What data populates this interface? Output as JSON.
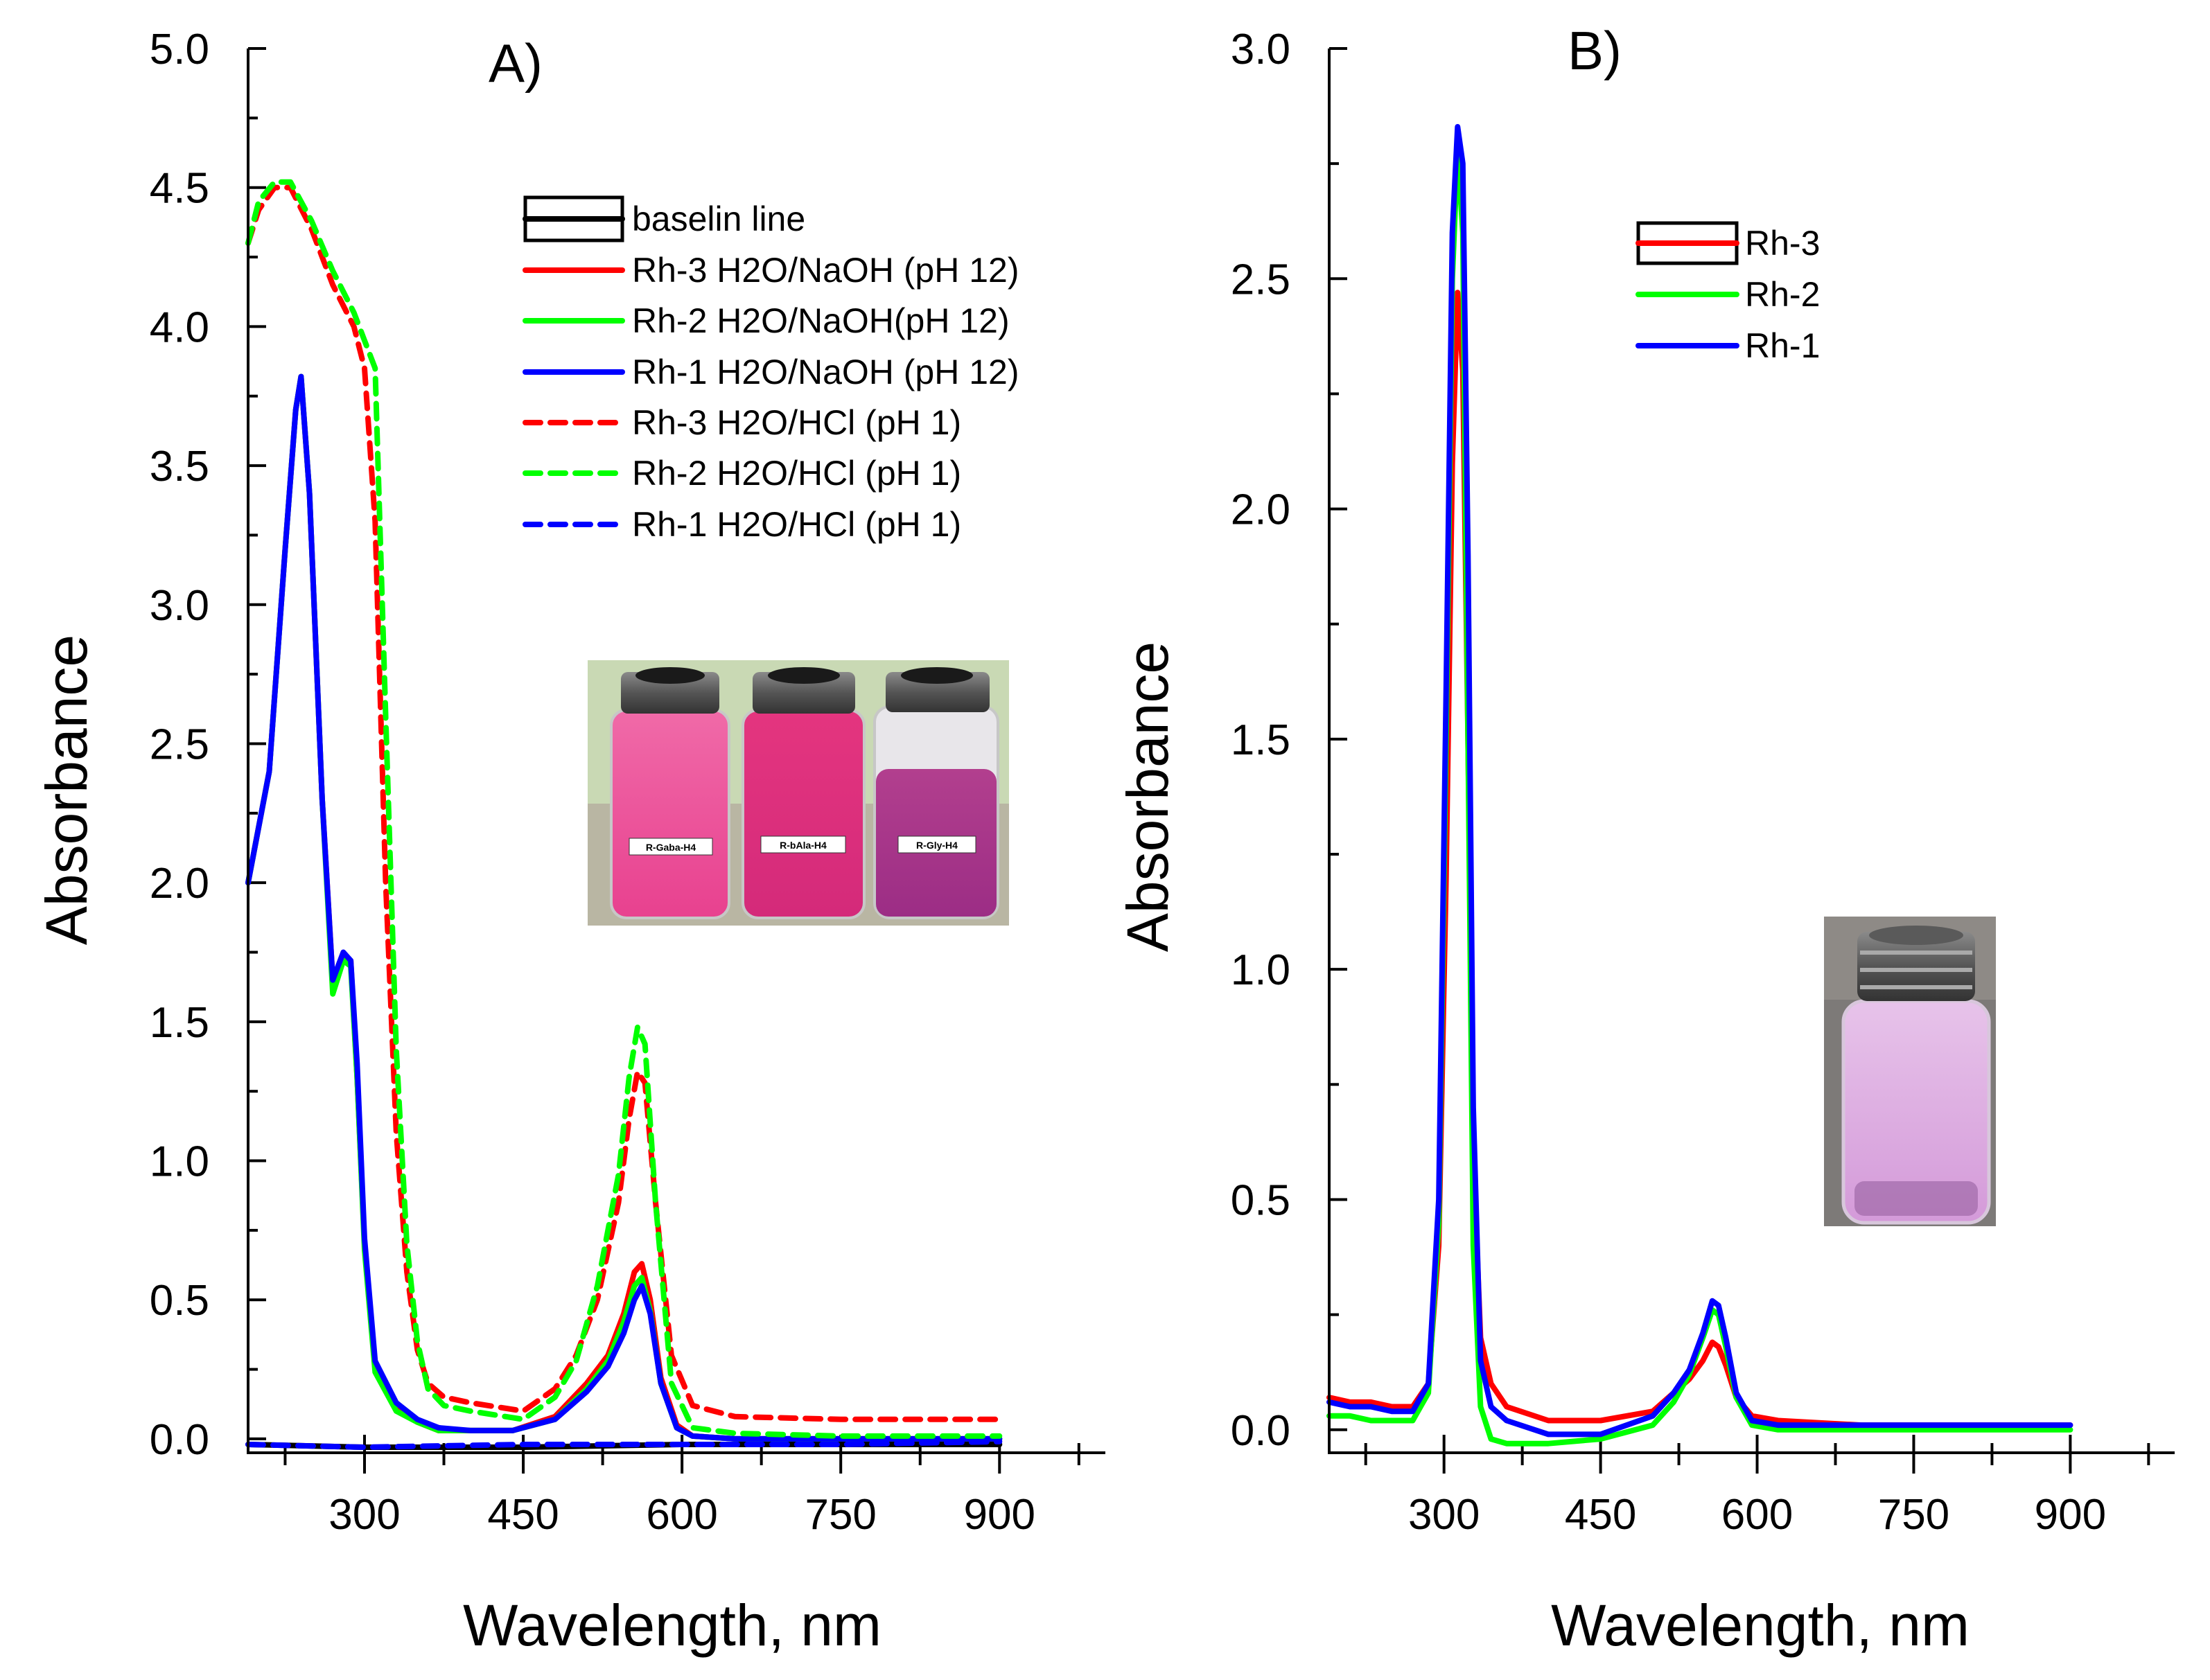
{
  "chart_data": [
    {
      "type": "line",
      "title": "A)",
      "xlabel": "Wavelength, nm",
      "ylabel": "Absorbance",
      "xlim": [
        190,
        1000
      ],
      "ylim": [
        -0.05,
        5.0
      ],
      "xticks": [
        300,
        450,
        600,
        750,
        900
      ],
      "yticks": [
        "0.0",
        "0.5",
        "1.0",
        "1.5",
        "2.0",
        "2.5",
        "3.0",
        "3.5",
        "4.0",
        "4.5",
        "5.0"
      ],
      "legend_position": "top-right",
      "series": [
        {
          "name": "baselin line",
          "color": "#000000",
          "style": "solid",
          "x": [
            190,
            300,
            450,
            600,
            750,
            900
          ],
          "y": [
            -0.02,
            -0.03,
            -0.03,
            -0.02,
            -0.02,
            -0.02
          ]
        },
        {
          "name": "Rh-3 H2O/NaOH (pH 12)",
          "color": "#ff0000",
          "style": "solid",
          "x": [
            190,
            210,
            225,
            235,
            240,
            248,
            260,
            270,
            280,
            287,
            293,
            300,
            310,
            330,
            350,
            370,
            400,
            440,
            480,
            510,
            530,
            545,
            555,
            562,
            570,
            580,
            595,
            610,
            650,
            700,
            800,
            900
          ],
          "y": [
            2.0,
            2.4,
            3.2,
            3.7,
            3.82,
            3.4,
            2.3,
            1.65,
            1.73,
            1.72,
            1.3,
            0.7,
            0.27,
            0.12,
            0.06,
            0.03,
            0.03,
            0.03,
            0.08,
            0.2,
            0.3,
            0.45,
            0.6,
            0.63,
            0.5,
            0.22,
            0.05,
            0.01,
            0.0,
            0.0,
            0.0,
            0.0
          ]
        },
        {
          "name": "Rh-2 H2O/NaOH(pH 12)",
          "color": "#00ff00",
          "style": "solid",
          "x": [
            190,
            210,
            225,
            235,
            240,
            248,
            260,
            270,
            280,
            287,
            293,
            300,
            310,
            330,
            350,
            370,
            400,
            440,
            480,
            510,
            530,
            545,
            555,
            562,
            570,
            580,
            595,
            610,
            650,
            700,
            800,
            900
          ],
          "y": [
            2.0,
            2.4,
            3.2,
            3.7,
            3.82,
            3.4,
            2.3,
            1.6,
            1.72,
            1.7,
            1.3,
            0.68,
            0.24,
            0.1,
            0.06,
            0.03,
            0.03,
            0.03,
            0.07,
            0.18,
            0.28,
            0.42,
            0.55,
            0.58,
            0.46,
            0.2,
            0.04,
            0.01,
            0.0,
            0.0,
            0.0,
            0.0
          ]
        },
        {
          "name": "Rh-1 H2O/NaOH (pH 12)",
          "color": "#0000ff",
          "style": "solid",
          "x": [
            190,
            210,
            225,
            235,
            240,
            248,
            260,
            270,
            280,
            287,
            293,
            300,
            310,
            330,
            350,
            370,
            400,
            440,
            480,
            510,
            530,
            545,
            555,
            562,
            570,
            580,
            595,
            610,
            650,
            700,
            800,
            900
          ],
          "y": [
            2.0,
            2.4,
            3.2,
            3.7,
            3.82,
            3.4,
            2.3,
            1.65,
            1.75,
            1.72,
            1.35,
            0.72,
            0.28,
            0.13,
            0.07,
            0.04,
            0.03,
            0.03,
            0.07,
            0.17,
            0.26,
            0.38,
            0.5,
            0.55,
            0.45,
            0.2,
            0.04,
            0.01,
            0.0,
            0.0,
            0.0,
            0.0
          ]
        },
        {
          "name": "Rh-3 H2O/HCl (pH 1)",
          "color": "#ff0000",
          "style": "dashed",
          "x": [
            190,
            200,
            215,
            230,
            250,
            270,
            290,
            300,
            310,
            320,
            330,
            340,
            350,
            360,
            375,
            400,
            450,
            480,
            500,
            520,
            540,
            550,
            558,
            565,
            575,
            590,
            610,
            650,
            750,
            900
          ],
          "y": [
            4.3,
            4.42,
            4.5,
            4.5,
            4.35,
            4.15,
            4.0,
            3.85,
            3.3,
            2.0,
            1.1,
            0.6,
            0.32,
            0.2,
            0.15,
            0.13,
            0.1,
            0.18,
            0.3,
            0.5,
            0.85,
            1.15,
            1.32,
            1.28,
            0.85,
            0.3,
            0.12,
            0.08,
            0.07,
            0.07
          ]
        },
        {
          "name": "Rh-2 H2O/HCl (pH 1)",
          "color": "#00ff00",
          "style": "dashed",
          "x": [
            190,
            200,
            215,
            230,
            250,
            270,
            290,
            300,
            310,
            320,
            330,
            340,
            350,
            360,
            375,
            400,
            450,
            480,
            500,
            520,
            540,
            550,
            558,
            565,
            575,
            590,
            610,
            650,
            750,
            900
          ],
          "y": [
            4.3,
            4.45,
            4.52,
            4.52,
            4.38,
            4.2,
            4.05,
            3.95,
            3.85,
            2.6,
            1.4,
            0.7,
            0.35,
            0.18,
            0.12,
            0.1,
            0.07,
            0.15,
            0.28,
            0.55,
            0.95,
            1.3,
            1.48,
            1.42,
            0.85,
            0.2,
            0.04,
            0.02,
            0.01,
            0.01
          ]
        },
        {
          "name": "Rh-1 H2O/HCl (pH 1)",
          "color": "#0000ff",
          "style": "dashed",
          "x": [
            190,
            300,
            450,
            600,
            750,
            900
          ],
          "y": [
            -0.02,
            -0.03,
            -0.02,
            -0.02,
            -0.02,
            -0.01
          ]
        }
      ],
      "inset": {
        "labels": [
          "R-Gaba-H4",
          "R-bAla-H4",
          "R-Gly-H4"
        ]
      }
    },
    {
      "type": "line",
      "title": "B)",
      "xlabel": "Wavelength, nm",
      "ylabel": "Absorbance",
      "xlim": [
        190,
        1000
      ],
      "ylim": [
        -0.05,
        3.0
      ],
      "xticks": [
        300,
        450,
        600,
        750,
        900
      ],
      "yticks": [
        "0.0",
        "0.5",
        "1.0",
        "1.5",
        "2.0",
        "2.5",
        "3.0"
      ],
      "legend_position": "top-center",
      "series": [
        {
          "name": "Rh-3",
          "color": "#ff0000",
          "style": "solid",
          "x": [
            190,
            210,
            230,
            250,
            270,
            285,
            295,
            302,
            308,
            313,
            318,
            323,
            328,
            335,
            345,
            360,
            400,
            450,
            500,
            520,
            535,
            548,
            557,
            563,
            570,
            580,
            595,
            620,
            700,
            800,
            900
          ],
          "y": [
            0.07,
            0.06,
            0.06,
            0.05,
            0.05,
            0.1,
            0.4,
            1.2,
            2.1,
            2.47,
            2.3,
            1.5,
            0.6,
            0.2,
            0.1,
            0.05,
            0.02,
            0.02,
            0.04,
            0.08,
            0.11,
            0.15,
            0.19,
            0.18,
            0.14,
            0.07,
            0.03,
            0.02,
            0.01,
            0.01,
            0.01
          ]
        },
        {
          "name": "Rh-2",
          "color": "#00ff00",
          "style": "solid",
          "x": [
            190,
            210,
            230,
            250,
            270,
            285,
            295,
            302,
            308,
            313,
            318,
            323,
            328,
            335,
            345,
            360,
            400,
            450,
            500,
            520,
            535,
            548,
            557,
            563,
            570,
            580,
            595,
            620,
            700,
            800,
            900
          ],
          "y": [
            0.03,
            0.03,
            0.02,
            0.02,
            0.02,
            0.08,
            0.45,
            1.5,
            2.5,
            2.78,
            2.6,
            1.5,
            0.4,
            0.05,
            -0.02,
            -0.03,
            -0.03,
            -0.02,
            0.01,
            0.06,
            0.12,
            0.2,
            0.26,
            0.25,
            0.18,
            0.07,
            0.01,
            0.0,
            0.0,
            0.0,
            0.0
          ]
        },
        {
          "name": "Rh-1",
          "color": "#0000ff",
          "style": "solid",
          "x": [
            190,
            210,
            230,
            250,
            270,
            285,
            295,
            302,
            308,
            313,
            318,
            323,
            328,
            335,
            345,
            360,
            400,
            450,
            500,
            520,
            535,
            548,
            557,
            563,
            570,
            580,
            595,
            620,
            700,
            800,
            900
          ],
          "y": [
            0.06,
            0.05,
            0.05,
            0.04,
            0.04,
            0.1,
            0.5,
            1.6,
            2.6,
            2.83,
            2.75,
            1.9,
            0.7,
            0.15,
            0.05,
            0.02,
            -0.01,
            -0.01,
            0.03,
            0.08,
            0.13,
            0.21,
            0.28,
            0.27,
            0.2,
            0.08,
            0.02,
            0.01,
            0.01,
            0.01,
            0.01
          ]
        }
      ]
    }
  ]
}
